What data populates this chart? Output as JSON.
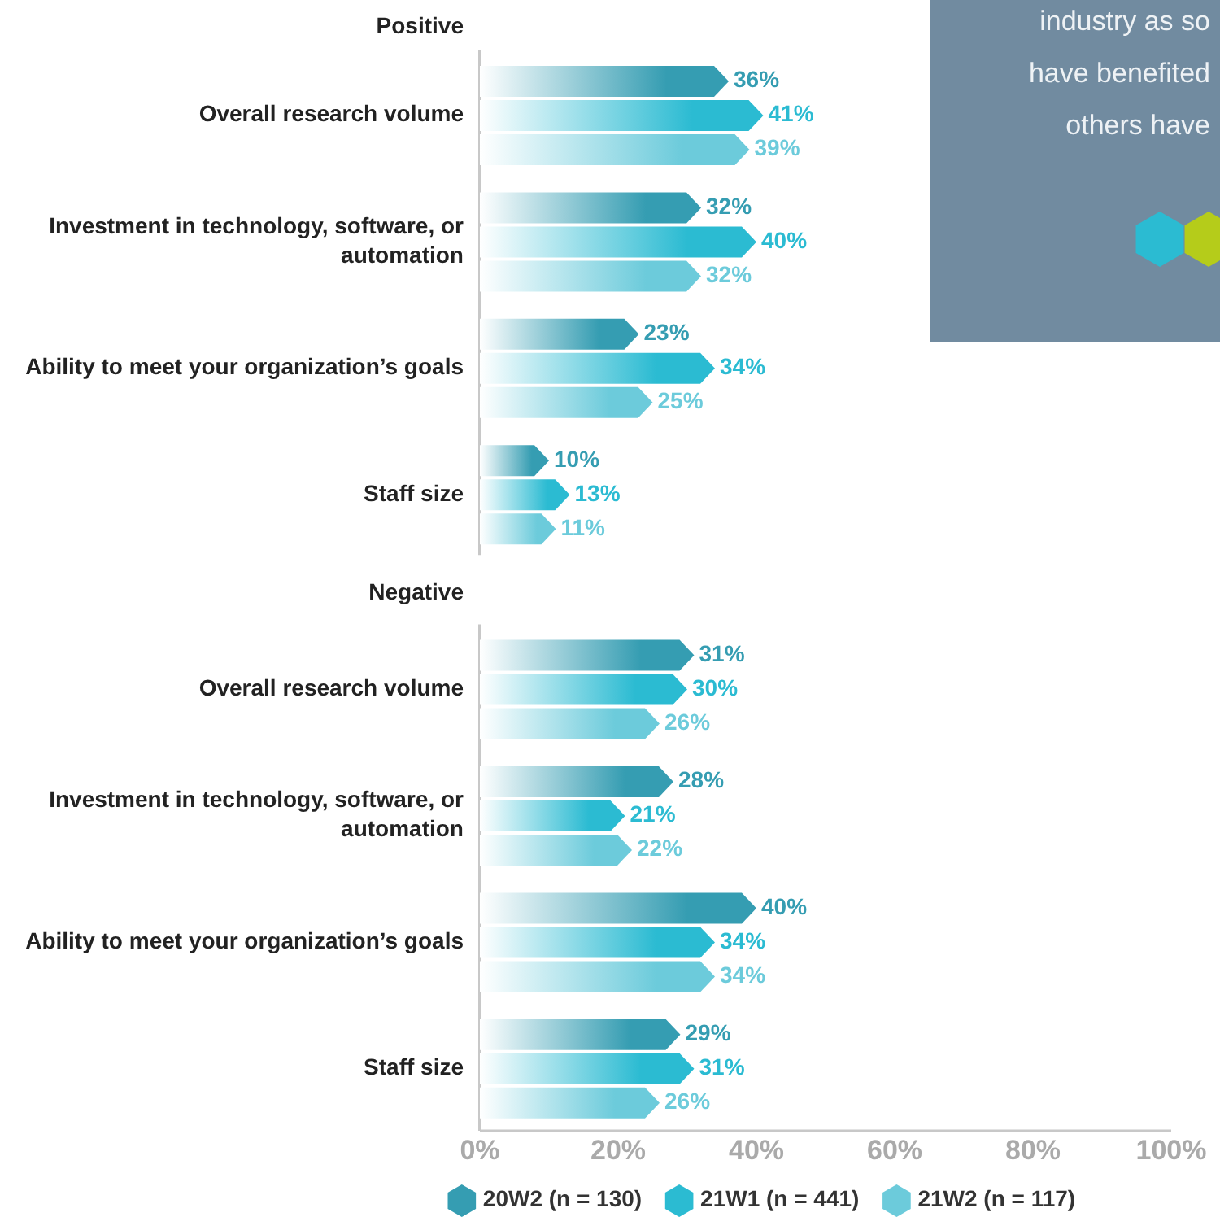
{
  "chart_data": {
    "type": "bar",
    "orientation": "horizontal",
    "categories": [
      "Overall research volume",
      "Investment in technology, software, or automation",
      "Ability to meet your organization’s goals",
      "Staff size",
      "Overall research volume",
      "Investment in technology, software, or automation",
      "Ability to meet your organization’s goals",
      "Staff size"
    ],
    "series": [
      {
        "name": "20W2 (n = 130)",
        "color": "#359db2",
        "values": [
          36,
          32,
          23,
          10,
          31,
          28,
          40,
          29
        ],
        "value_labels": [
          "36%",
          "32%",
          "23%",
          "10%",
          "31%",
          "28%",
          "40%",
          "29%"
        ]
      },
      {
        "name": "21W1 (n = 441)",
        "color": "#2bbbd2",
        "values": [
          41,
          40,
          34,
          13,
          30,
          21,
          34,
          31
        ],
        "value_labels": [
          "41%",
          "40%",
          "34%",
          "13%",
          "30%",
          "21%",
          "34%",
          "31%"
        ]
      },
      {
        "name": "21W2 (n = 117)",
        "color": "#6ccbdb",
        "values": [
          39,
          32,
          25,
          11,
          26,
          22,
          34,
          26
        ],
        "value_labels": [
          "39%",
          "32%",
          "25%",
          "11%",
          "26%",
          "22%",
          "34%",
          "26%"
        ]
      }
    ],
    "xlim": [
      0,
      100
    ],
    "xticks": [
      {
        "value": 0,
        "label": "0%"
      },
      {
        "value": 20,
        "label": "20%"
      },
      {
        "value": 40,
        "label": "40%"
      },
      {
        "value": 60,
        "label": "60%"
      },
      {
        "value": 80,
        "label": "80%"
      },
      {
        "value": 100,
        "label": "100%"
      }
    ],
    "legend": "bottom",
    "annotations": [
      "Positive",
      "Negative",
      "industry as so",
      "have benefited",
      "others have"
    ]
  }
}
